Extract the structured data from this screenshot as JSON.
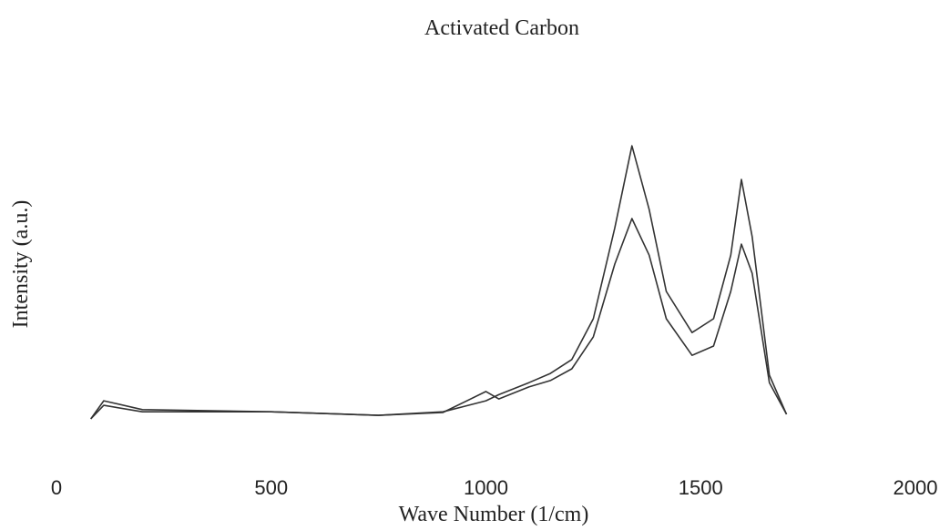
{
  "chart_data": {
    "type": "line",
    "title": "Activated Carbon",
    "x_label": "Wave Number (1/cm)",
    "y_label": "Intensity (a.u.)",
    "x": [
      80,
      110,
      200,
      500,
      750,
      900,
      1000,
      1030,
      1100,
      1150,
      1200,
      1250,
      1300,
      1340,
      1380,
      1420,
      1480,
      1530,
      1570,
      1595,
      1620,
      1660,
      1700
    ],
    "series": [
      {
        "color": "#333333",
        "values": [
          7.7,
          12.8,
          10.3,
          9.7,
          8.7,
          9.7,
          12.8,
          14.5,
          17.9,
          20.5,
          24.4,
          35.9,
          61.5,
          84.6,
          66.7,
          43.6,
          32,
          35.9,
          53.8,
          75.1,
          59,
          20,
          9
        ]
      },
      {
        "color": "#333333",
        "values": [
          7.7,
          11.5,
          9.7,
          9.7,
          8.7,
          9.5,
          15.4,
          13.3,
          16.7,
          18.5,
          21.8,
          30.8,
          51.3,
          64.1,
          53.8,
          35.9,
          25.6,
          28.2,
          43.6,
          56.9,
          48.7,
          17.9,
          9
        ]
      }
    ],
    "xlim": [
      0,
      2000
    ],
    "xticks": [
      0,
      500,
      1000,
      1500,
      2000
    ],
    "ylim": [
      0,
      100
    ],
    "grid": false
  }
}
